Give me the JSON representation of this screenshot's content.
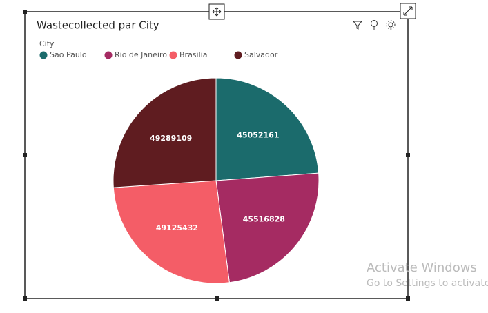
{
  "chart_data": {
    "type": "pie",
    "title": "Wastecollected par City",
    "legend_title": "City",
    "categories": [
      "Sao Paulo",
      "Rio de Janeiro",
      "Brasilia",
      "Salvador"
    ],
    "values": [
      45052161,
      45516828,
      49125432,
      49289109
    ],
    "colors": [
      "#1b6b6c",
      "#a52b62",
      "#f45d67",
      "#5f1c20"
    ],
    "legend": "top-left"
  },
  "watermark": {
    "title": "Activate Windows",
    "subtitle": "Go to Settings to activate Windows."
  }
}
